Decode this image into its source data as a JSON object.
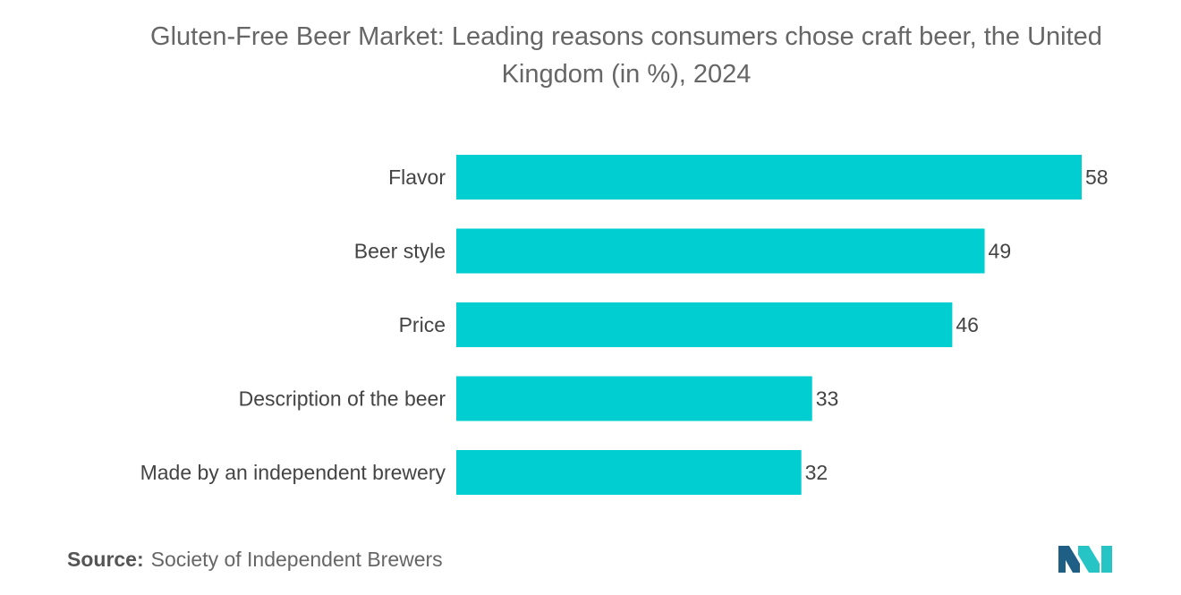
{
  "title": "Gluten-Free Beer Market: Leading reasons consumers chose craft beer, the United Kingdom (in %), 2024",
  "source": {
    "label": "Source:",
    "value": "Society of Independent Brewers"
  },
  "colors": {
    "bar": "#00CED1",
    "logo_dark": "#1f5f86",
    "logo_light": "#27c4c6"
  },
  "chart_data": {
    "type": "bar",
    "orientation": "horizontal",
    "categories": [
      "Flavor",
      "Beer style",
      "Price",
      "Description of the beer",
      "Made by an independent brewery"
    ],
    "values": [
      58,
      49,
      46,
      33,
      32
    ],
    "xlim": [
      0,
      58
    ],
    "grid": false,
    "legend": "none"
  }
}
